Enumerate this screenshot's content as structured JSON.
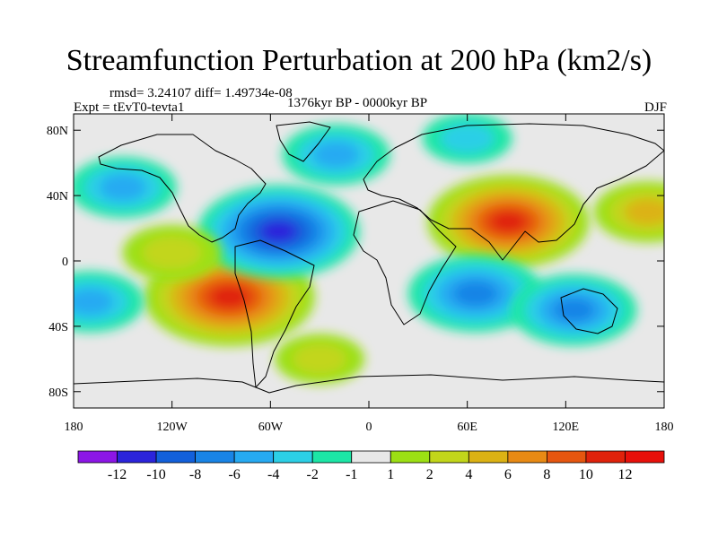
{
  "title": "Streamfunction Perturbation at 200 hPa (km2/s)",
  "stats": "rmsd= 3.24107 diff= 1.49734e-08",
  "experiment": "Expt = tEvT0-tevta1",
  "period": "1376kyr BP - 0000kyr BP",
  "season": "DJF",
  "chart_data": {
    "type": "contour-map",
    "variable": "Streamfunction Perturbation at 200 hPa",
    "units": "km2/s",
    "x_ticks": [
      "180",
      "120W",
      "60W",
      "0",
      "60E",
      "120E",
      "180"
    ],
    "y_ticks": [
      "80N",
      "40N",
      "0",
      "40S",
      "80S"
    ],
    "lon_range": [
      -180,
      180
    ],
    "lat_range": [
      -90,
      90
    ],
    "colorbar": {
      "labels": [
        "-12",
        "-10",
        "-8",
        "-6",
        "-4",
        "-2",
        "-1",
        "1",
        "2",
        "4",
        "6",
        "8",
        "10",
        "12"
      ],
      "colors": [
        "#8c16e6",
        "#2b24db",
        "#1260db",
        "#1984e6",
        "#26aaf2",
        "#2ccfe6",
        "#1ce6a6",
        "#e8e8e8",
        "#9ce014",
        "#c2d61a",
        "#dcb214",
        "#e88a14",
        "#e6560f",
        "#e0220b",
        "#e8100a"
      ]
    },
    "features": [
      {
        "name": "South America high",
        "lon": -85,
        "lat": -22,
        "value": 11
      },
      {
        "name": "South Asia high",
        "lon": 85,
        "lat": 24,
        "value": 10
      },
      {
        "name": "Caribbean low",
        "lon": -55,
        "lat": 18,
        "value": -10
      },
      {
        "name": "Indian Ocean low",
        "lon": 65,
        "lat": -20,
        "value": -7
      },
      {
        "name": "Australia low",
        "lon": 125,
        "lat": -30,
        "value": -6
      },
      {
        "name": "North Pacific low",
        "lon": -150,
        "lat": 45,
        "value": -4
      },
      {
        "name": "North Atlantic low",
        "lon": -20,
        "lat": 65,
        "value": -4
      },
      {
        "name": "Arctic low",
        "lon": 60,
        "lat": 75,
        "value": -2
      },
      {
        "name": "NW Pacific high",
        "lon": 170,
        "lat": 30,
        "value": 4
      },
      {
        "name": "Southern Ocean high",
        "lon": -30,
        "lat": -60,
        "value": 2
      },
      {
        "name": "SW Pacific low",
        "lon": -170,
        "lat": -25,
        "value": -4
      },
      {
        "name": "Equatorial Pacific high",
        "lon": -120,
        "lat": 5,
        "value": 3
      }
    ]
  }
}
